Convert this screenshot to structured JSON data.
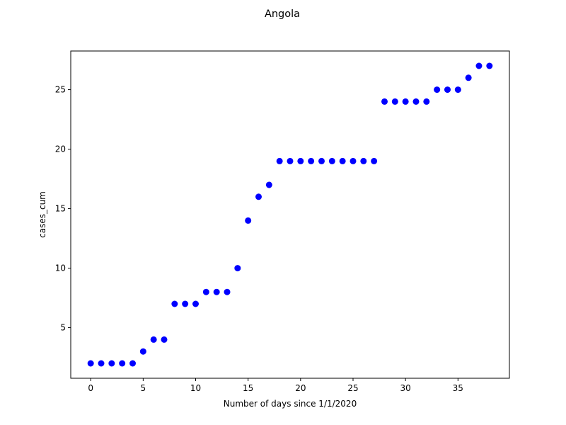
{
  "chart_data": {
    "type": "scatter",
    "title": "Angola",
    "xlabel": "Number of days since 1/1/2020",
    "ylabel": "cases_cum",
    "xlim": [
      -1.9,
      39.9
    ],
    "ylim": [
      0.75,
      28.25
    ],
    "xticks": [
      0,
      5,
      10,
      15,
      20,
      25,
      30,
      35
    ],
    "yticks": [
      5,
      10,
      15,
      20,
      25
    ],
    "grid": false,
    "legend": false,
    "marker_color": "#0000ff",
    "series": [
      {
        "x": [
          0,
          1,
          2,
          3,
          4,
          5,
          6,
          7,
          8,
          9,
          10,
          11,
          12,
          13,
          14,
          15,
          16,
          17,
          18,
          19,
          20,
          21,
          22,
          23,
          24,
          25,
          26,
          27,
          28,
          29,
          30,
          31,
          32,
          33,
          34,
          35,
          36,
          37,
          38
        ],
        "y": [
          2,
          2,
          2,
          2,
          2,
          3,
          4,
          4,
          7,
          7,
          7,
          8,
          8,
          8,
          10,
          14,
          16,
          17,
          19,
          19,
          19,
          19,
          19,
          19,
          19,
          19,
          19,
          19,
          24,
          24,
          24,
          24,
          24,
          25,
          25,
          25,
          26,
          27,
          27
        ]
      }
    ]
  }
}
